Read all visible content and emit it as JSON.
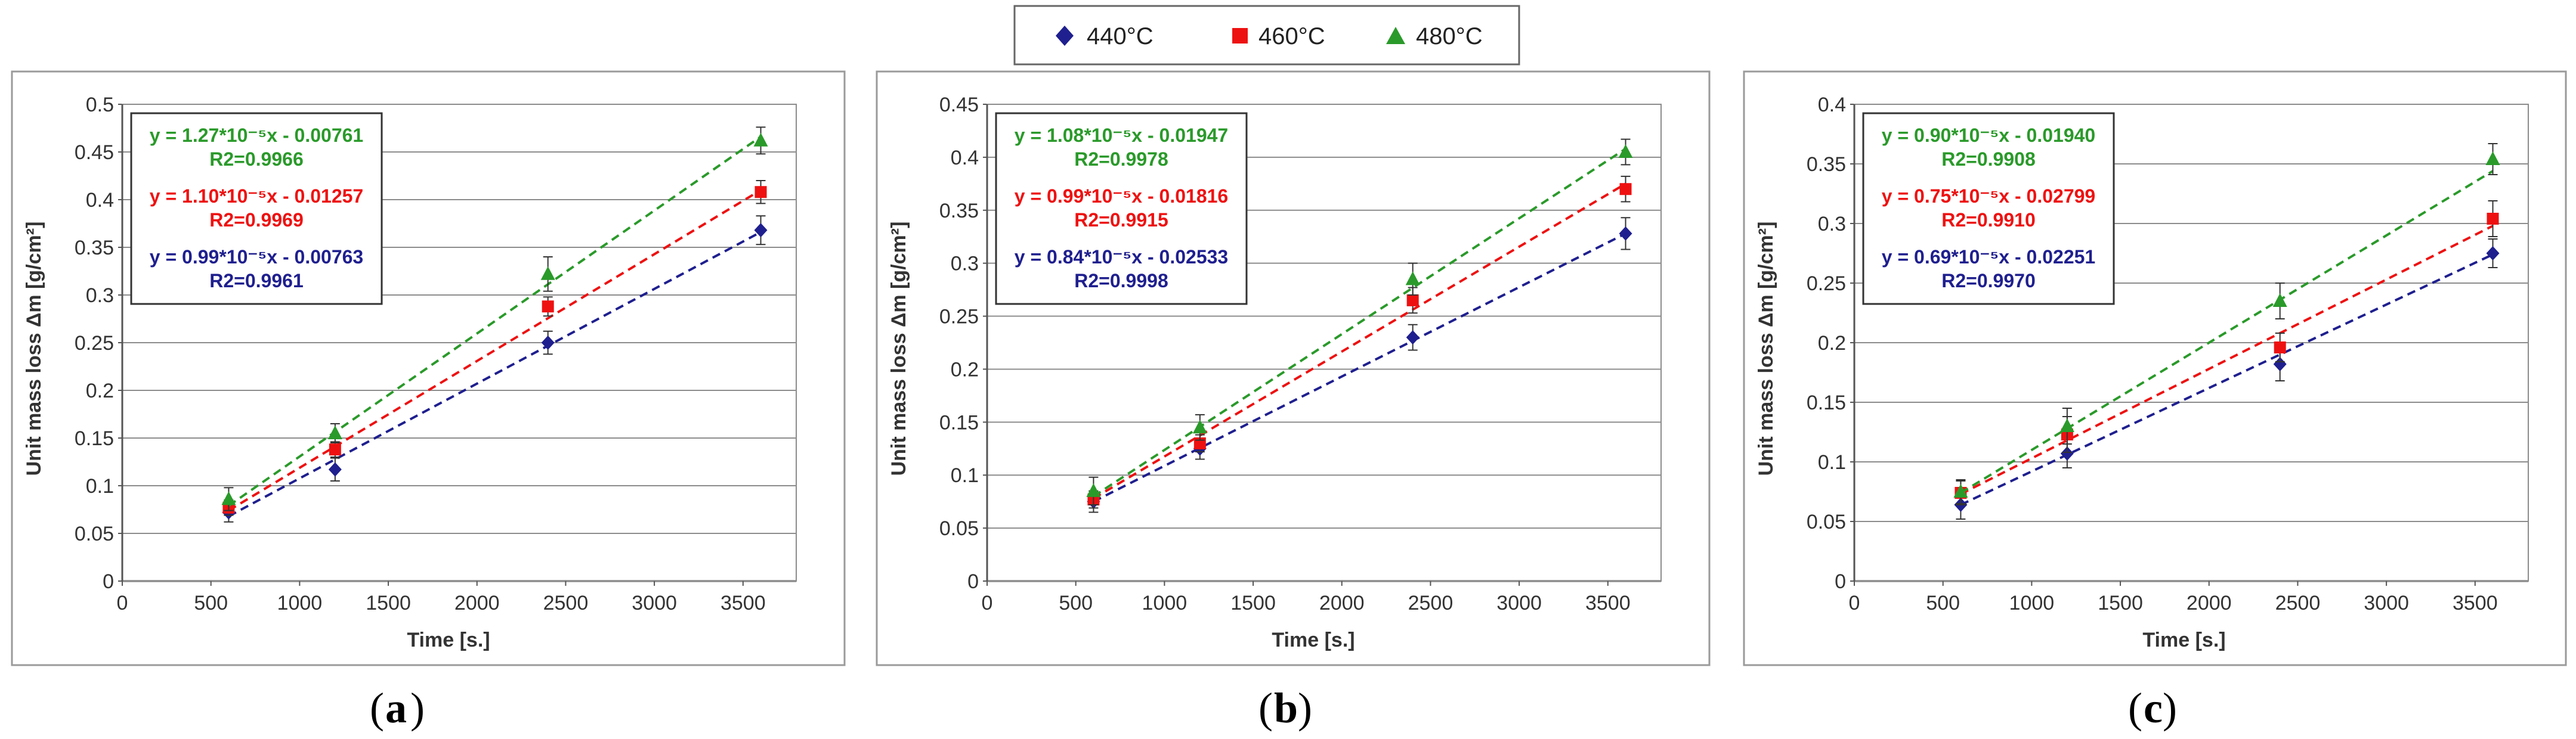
{
  "legend": {
    "items": [
      {
        "name": "440°C",
        "color": "#1f1f8f",
        "marker": "diamond"
      },
      {
        "name": "460°C",
        "color": "#ee1111",
        "marker": "square"
      },
      {
        "name": "480°C",
        "color": "#2a9a2a",
        "marker": "triangle"
      }
    ]
  },
  "chart_data": [
    {
      "type": "scatter",
      "panel_label": "a",
      "xlabel": "Time [s.]",
      "ylabel": "Unit mass loss  Δm [g/cm²]",
      "xlim": [
        0,
        3800
      ],
      "ylim": [
        0,
        0.5
      ],
      "xticks": [
        0,
        500,
        1000,
        1500,
        2000,
        2500,
        3000,
        3500
      ],
      "yticks": [
        0,
        0.05,
        0.1,
        0.15,
        0.2,
        0.25,
        0.3,
        0.35,
        0.4,
        0.45,
        0.5
      ],
      "x": [
        600,
        1200,
        2400,
        3600
      ],
      "series": [
        {
          "name": "440°C",
          "values": [
            0.072,
            0.117,
            0.25,
            0.368
          ],
          "errors": [
            0.01,
            0.012,
            0.012,
            0.015
          ],
          "equation": "y = 0.99*10⁻⁵x - 0.00763",
          "r2": "R2=0.9961",
          "fit_start": 0.068,
          "fit_end": 0.366
        },
        {
          "name": "460°C",
          "values": [
            0.077,
            0.138,
            0.288,
            0.408
          ],
          "errors": [
            0.008,
            0.008,
            0.01,
            0.012
          ],
          "equation": "y = 1.10*10⁻⁵x - 0.01257",
          "r2": "R2=0.9969",
          "fit_start": 0.074,
          "fit_end": 0.41
        },
        {
          "name": "480°C",
          "values": [
            0.086,
            0.155,
            0.322,
            0.462
          ],
          "errors": [
            0.012,
            0.01,
            0.018,
            0.014
          ],
          "equation": "y = 1.27*10⁻⁵x - 0.00761",
          "r2": "R2=0.9966",
          "fit_start": 0.079,
          "fit_end": 0.466
        }
      ]
    },
    {
      "type": "scatter",
      "panel_label": "b",
      "xlabel": "Time [s.]",
      "ylabel": "Unit mass loss  Δm [g/cm²]",
      "xlim": [
        0,
        3800
      ],
      "ylim": [
        0,
        0.45
      ],
      "xticks": [
        0,
        500,
        1000,
        1500,
        2000,
        2500,
        3000,
        3500
      ],
      "yticks": [
        0,
        0.05,
        0.1,
        0.15,
        0.2,
        0.25,
        0.3,
        0.35,
        0.4,
        0.45
      ],
      "x": [
        600,
        1200,
        2400,
        3600
      ],
      "series": [
        {
          "name": "440°C",
          "values": [
            0.075,
            0.125,
            0.23,
            0.328
          ],
          "errors": [
            0.01,
            0.01,
            0.012,
            0.015
          ],
          "equation": "y = 0.84*10⁻⁵x - 0.02533",
          "r2": "R2=0.9998",
          "fit_start": 0.075,
          "fit_end": 0.328
        },
        {
          "name": "460°C",
          "values": [
            0.077,
            0.13,
            0.265,
            0.37
          ],
          "errors": [
            0.008,
            0.008,
            0.012,
            0.012
          ],
          "equation": "y = 0.99*10⁻⁵x - 0.01816",
          "r2": "R2=0.9915",
          "fit_start": 0.078,
          "fit_end": 0.375
        },
        {
          "name": "480°C",
          "values": [
            0.085,
            0.145,
            0.285,
            0.405
          ],
          "errors": [
            0.013,
            0.012,
            0.015,
            0.012
          ],
          "equation": "y = 1.08*10⁻⁵x - 0.01947",
          "r2": "R2=0.9978",
          "fit_start": 0.08,
          "fit_end": 0.408
        }
      ]
    },
    {
      "type": "scatter",
      "panel_label": "c",
      "xlabel": "Time [s.]",
      "ylabel": "Unit mass loss  Δm [g/cm²]",
      "xlim": [
        0,
        3800
      ],
      "ylim": [
        0,
        0.4
      ],
      "xticks": [
        0,
        500,
        1000,
        1500,
        2000,
        2500,
        3000,
        3500
      ],
      "yticks": [
        0,
        0.05,
        0.1,
        0.15,
        0.2,
        0.25,
        0.3,
        0.35,
        0.4
      ],
      "x": [
        600,
        1200,
        2400,
        3600
      ],
      "series": [
        {
          "name": "440°C",
          "values": [
            0.064,
            0.107,
            0.182,
            0.275
          ],
          "errors": [
            0.012,
            0.012,
            0.014,
            0.012
          ],
          "equation": "y = 0.69*10⁻⁵x - 0.02251",
          "r2": "R2=0.9970",
          "fit_start": 0.064,
          "fit_end": 0.274
        },
        {
          "name": "460°C",
          "values": [
            0.074,
            0.123,
            0.196,
            0.304
          ],
          "errors": [
            0.01,
            0.015,
            0.012,
            0.015
          ],
          "equation": "y = 0.75*10⁻⁵x - 0.02799",
          "r2": "R2=0.9910",
          "fit_start": 0.073,
          "fit_end": 0.298
        },
        {
          "name": "480°C",
          "values": [
            0.075,
            0.13,
            0.235,
            0.354
          ],
          "errors": [
            0.01,
            0.015,
            0.015,
            0.013
          ],
          "equation": "y = 0.90*10⁻⁵x - 0.01940",
          "r2": "R2=0.9908",
          "fit_start": 0.074,
          "fit_end": 0.344
        }
      ]
    }
  ]
}
